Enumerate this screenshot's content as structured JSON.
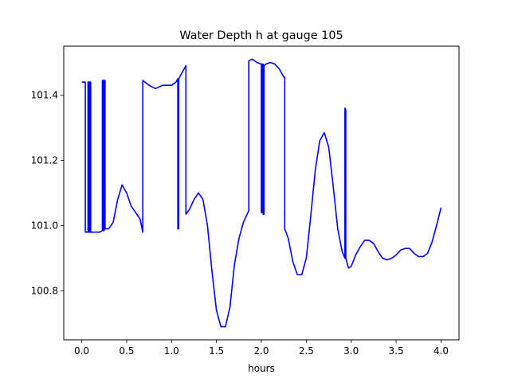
{
  "chart_data": {
    "type": "line",
    "title": "Water Depth h at gauge 105",
    "xlabel": "hours",
    "ylabel": "",
    "xlim": [
      -0.2,
      4.2
    ],
    "ylim": [
      100.65,
      101.55
    ],
    "x_ticks": [
      0.0,
      0.5,
      1.0,
      1.5,
      2.0,
      2.5,
      3.0,
      3.5,
      4.0
    ],
    "x_tick_labels": [
      "0.0",
      "0.5",
      "1.0",
      "1.5",
      "2.0",
      "2.5",
      "3.0",
      "3.5",
      "4.0"
    ],
    "y_ticks": [
      100.8,
      101.0,
      101.2,
      101.4
    ],
    "y_tick_labels": [
      "100.8",
      "101.0",
      "101.2",
      "101.4"
    ],
    "grid": false,
    "legend": "none",
    "series": [
      {
        "color": "#0000ff",
        "points": [
          [
            0.0,
            101.44
          ],
          [
            0.03,
            101.44
          ],
          [
            0.04,
            101.44
          ],
          [
            0.04,
            100.98
          ],
          [
            0.07,
            100.98
          ],
          [
            0.07,
            101.44
          ],
          [
            0.08,
            101.44
          ],
          [
            0.08,
            100.98
          ],
          [
            0.09,
            100.98
          ],
          [
            0.09,
            101.44
          ],
          [
            0.1,
            101.44
          ],
          [
            0.1,
            100.98
          ],
          [
            0.15,
            100.98
          ],
          [
            0.2,
            100.98
          ],
          [
            0.23,
            100.985
          ],
          [
            0.23,
            101.445
          ],
          [
            0.24,
            101.445
          ],
          [
            0.24,
            100.985
          ],
          [
            0.25,
            100.985
          ],
          [
            0.25,
            101.445
          ],
          [
            0.26,
            101.445
          ],
          [
            0.26,
            100.99
          ],
          [
            0.3,
            100.99
          ],
          [
            0.35,
            101.01
          ],
          [
            0.4,
            101.08
          ],
          [
            0.45,
            101.125
          ],
          [
            0.5,
            101.1
          ],
          [
            0.55,
            101.06
          ],
          [
            0.6,
            101.04
          ],
          [
            0.65,
            101.02
          ],
          [
            0.68,
            100.98
          ],
          [
            0.68,
            101.445
          ],
          [
            0.75,
            101.43
          ],
          [
            0.82,
            101.42
          ],
          [
            0.9,
            101.43
          ],
          [
            1.0,
            101.43
          ],
          [
            1.05,
            101.44
          ],
          [
            1.07,
            101.45
          ],
          [
            1.07,
            100.99
          ],
          [
            1.08,
            100.99
          ],
          [
            1.08,
            101.45
          ],
          [
            1.12,
            101.47
          ],
          [
            1.16,
            101.49
          ],
          [
            1.16,
            101.035
          ],
          [
            1.2,
            101.05
          ],
          [
            1.25,
            101.08
          ],
          [
            1.3,
            101.1
          ],
          [
            1.35,
            101.08
          ],
          [
            1.4,
            101.0
          ],
          [
            1.45,
            100.86
          ],
          [
            1.5,
            100.74
          ],
          [
            1.55,
            100.69
          ],
          [
            1.6,
            100.69
          ],
          [
            1.65,
            100.75
          ],
          [
            1.7,
            100.88
          ],
          [
            1.75,
            100.96
          ],
          [
            1.8,
            101.01
          ],
          [
            1.85,
            101.04
          ],
          [
            1.86,
            101.045
          ],
          [
            1.86,
            101.505
          ],
          [
            1.9,
            101.51
          ],
          [
            1.95,
            101.5
          ],
          [
            2.0,
            101.495
          ],
          [
            2.0,
            101.04
          ],
          [
            2.01,
            101.04
          ],
          [
            2.01,
            101.495
          ],
          [
            2.02,
            101.495
          ],
          [
            2.02,
            101.035
          ],
          [
            2.03,
            101.035
          ],
          [
            2.03,
            101.49
          ],
          [
            2.05,
            101.495
          ],
          [
            2.1,
            101.5
          ],
          [
            2.15,
            101.495
          ],
          [
            2.2,
            101.48
          ],
          [
            2.25,
            101.455
          ],
          [
            2.26,
            101.455
          ],
          [
            2.26,
            100.99
          ],
          [
            2.3,
            100.96
          ],
          [
            2.35,
            100.89
          ],
          [
            2.4,
            100.85
          ],
          [
            2.45,
            100.85
          ],
          [
            2.5,
            100.9
          ],
          [
            2.55,
            101.03
          ],
          [
            2.6,
            101.17
          ],
          [
            2.65,
            101.26
          ],
          [
            2.7,
            101.285
          ],
          [
            2.75,
            101.24
          ],
          [
            2.8,
            101.12
          ],
          [
            2.85,
            100.99
          ],
          [
            2.9,
            100.92
          ],
          [
            2.93,
            100.9
          ],
          [
            2.93,
            101.36
          ],
          [
            2.94,
            101.355
          ],
          [
            2.94,
            100.9
          ],
          [
            2.97,
            100.87
          ],
          [
            3.0,
            100.875
          ],
          [
            3.05,
            100.91
          ],
          [
            3.1,
            100.935
          ],
          [
            3.15,
            100.955
          ],
          [
            3.2,
            100.955
          ],
          [
            3.25,
            100.945
          ],
          [
            3.3,
            100.92
          ],
          [
            3.35,
            100.9
          ],
          [
            3.4,
            100.895
          ],
          [
            3.45,
            100.9
          ],
          [
            3.5,
            100.91
          ],
          [
            3.55,
            100.925
          ],
          [
            3.6,
            100.93
          ],
          [
            3.65,
            100.93
          ],
          [
            3.7,
            100.915
          ],
          [
            3.75,
            100.905
          ],
          [
            3.8,
            100.905
          ],
          [
            3.85,
            100.915
          ],
          [
            3.9,
            100.95
          ],
          [
            3.95,
            101.0
          ],
          [
            4.0,
            101.055
          ]
        ]
      }
    ]
  }
}
